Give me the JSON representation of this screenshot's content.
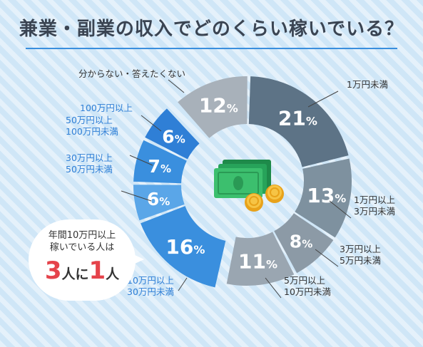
{
  "title": "兼業・副業の収入でどのくらい稼いでいる？",
  "colors": {
    "accent_line": "#3a8fde",
    "highlight_number": "#e5434b",
    "gray_segments": [
      "#5d7386",
      "#7e919f",
      "#8c9aa6",
      "#9aa6b1",
      "#a8b1ba"
    ],
    "blue_segments": [
      "#3a8fde",
      "#5aa6e8",
      "#3a8fde",
      "#2f7fd6"
    ]
  },
  "callout": {
    "line1": "年間10万円以上",
    "line2": "稼いでいる人は",
    "num_a": "3",
    "text_a": "人に",
    "num_b": "1",
    "text_b": "人"
  },
  "center_icon": "money-bills-and-coins-icon",
  "chart_data": {
    "type": "pie",
    "variant": "donut",
    "slices": [
      {
        "label_lines": [
          "1万円未満"
        ],
        "value": 21,
        "value_text": "21",
        "unit": "%",
        "color": "#5d7386",
        "group": "gray"
      },
      {
        "label_lines": [
          "1万円以上",
          "3万円未満"
        ],
        "value": 13,
        "value_text": "13",
        "unit": "%",
        "color": "#7e919f",
        "group": "gray"
      },
      {
        "label_lines": [
          "3万円以上",
          "5万円未満"
        ],
        "value": 8,
        "value_text": "8",
        "unit": "%",
        "color": "#8c9aa6",
        "group": "gray"
      },
      {
        "label_lines": [
          "5万円以上",
          "10万円未満"
        ],
        "value": 11,
        "value_text": "11",
        "unit": "%",
        "color": "#9aa6b1",
        "group": "gray"
      },
      {
        "label_lines": [
          "10万円以上",
          "30万円未満"
        ],
        "value": 16,
        "value_text": "16",
        "unit": "%",
        "color": "#3a8fde",
        "group": "blue"
      },
      {
        "label_lines": [
          "30万円以上",
          "50万円未満"
        ],
        "value": 6,
        "value_text": "6",
        "unit": "%",
        "color": "#5aa6e8",
        "group": "blue"
      },
      {
        "label_lines": [
          "50万円以上",
          "100万円未満"
        ],
        "value": 7,
        "value_text": "7",
        "unit": "%",
        "color": "#3a8fde",
        "group": "blue"
      },
      {
        "label_lines": [
          "100万円以上"
        ],
        "value": 6,
        "value_text": "6",
        "unit": "%",
        "color": "#2f7fd6",
        "group": "blue"
      },
      {
        "label_lines": [
          "分からない・答えたくない"
        ],
        "value": 12,
        "value_text": "12",
        "unit": "%",
        "color": "#a8b1ba",
        "group": "gray"
      }
    ]
  }
}
